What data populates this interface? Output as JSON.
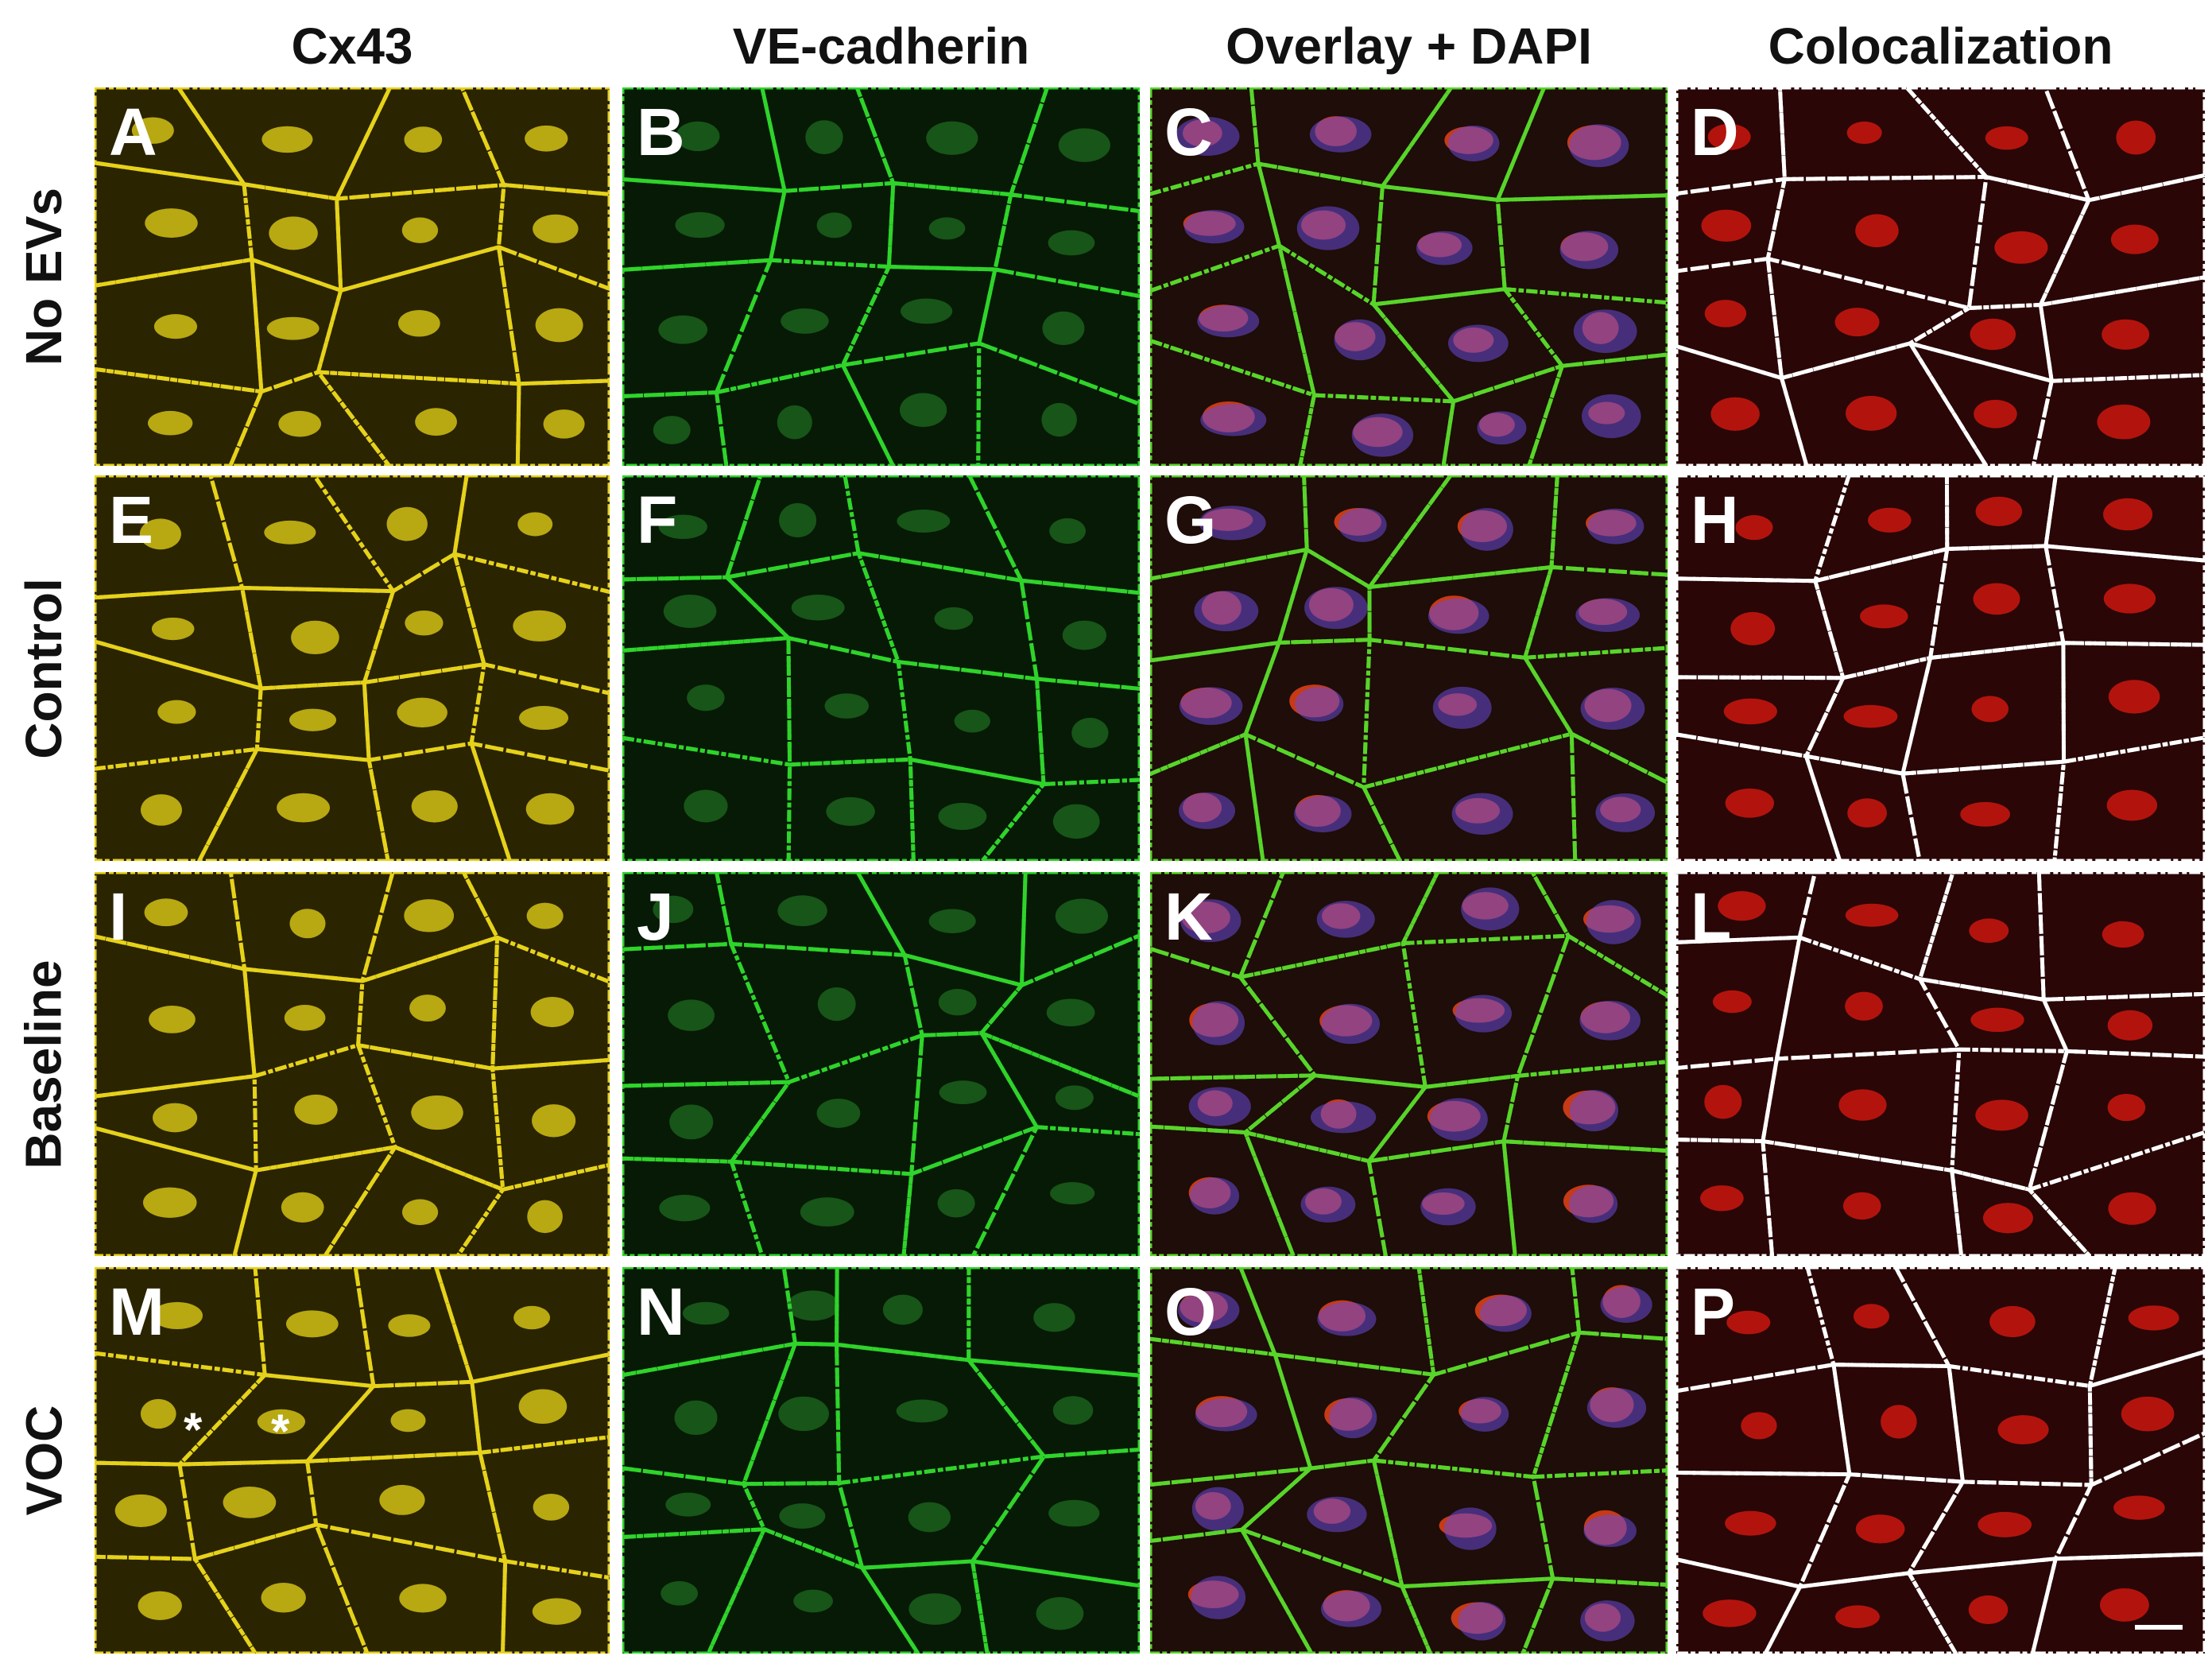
{
  "columns": [
    "Cx43",
    "VE-cadherin",
    "Overlay + DAPI",
    "Colocalization"
  ],
  "rows": [
    "No EVs",
    "Control",
    "Baseline",
    "VOC"
  ],
  "panels": [
    [
      "A",
      "B",
      "C",
      "D"
    ],
    [
      "E",
      "F",
      "G",
      "H"
    ],
    [
      "I",
      "J",
      "K",
      "L"
    ],
    [
      "M",
      "N",
      "O",
      "P"
    ]
  ],
  "asterisks": [
    "*",
    "*"
  ]
}
